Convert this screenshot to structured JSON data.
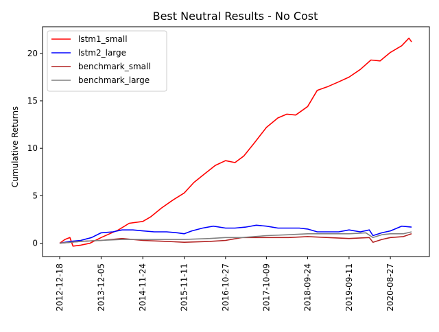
{
  "chart_data": {
    "type": "line",
    "title": "Best Neutral Results - No Cost",
    "xlabel": "",
    "ylabel": "Cumulative Returns",
    "x_ticks": [
      "2012-12-18",
      "2013-12-05",
      "2014-11-24",
      "2015-11-11",
      "2016-10-27",
      "2017-10-09",
      "2018-09-24",
      "2019-09-11",
      "2020-08-27"
    ],
    "x_range": [
      "2012-12-18",
      "2021-02-23"
    ],
    "y_ticks": [
      0,
      5,
      10,
      15,
      20
    ],
    "ylim": [
      -1.4,
      22.8
    ],
    "grid": false,
    "legend_position": "upper-left",
    "series": [
      {
        "name": "lstm1_small",
        "color": "#ff0000",
        "points": [
          [
            "2012-12-18",
            0.0
          ],
          [
            "2013-01-31",
            0.4
          ],
          [
            "2013-03-15",
            0.6
          ],
          [
            "2013-04-10",
            -0.3
          ],
          [
            "2013-06-15",
            -0.2
          ],
          [
            "2013-09-01",
            0.0
          ],
          [
            "2013-12-05",
            0.6
          ],
          [
            "2014-02-15",
            1.0
          ],
          [
            "2014-05-01",
            1.4
          ],
          [
            "2014-08-01",
            2.1
          ],
          [
            "2014-11-24",
            2.3
          ],
          [
            "2015-02-01",
            2.8
          ],
          [
            "2015-05-01",
            3.7
          ],
          [
            "2015-08-01",
            4.5
          ],
          [
            "2015-11-11",
            5.3
          ],
          [
            "2016-02-01",
            6.4
          ],
          [
            "2016-05-01",
            7.3
          ],
          [
            "2016-08-01",
            8.2
          ],
          [
            "2016-10-27",
            8.7
          ],
          [
            "2017-01-15",
            8.5
          ],
          [
            "2017-04-01",
            9.2
          ],
          [
            "2017-07-01",
            10.6
          ],
          [
            "2017-10-09",
            12.2
          ],
          [
            "2018-01-15",
            13.2
          ],
          [
            "2018-04-01",
            13.6
          ],
          [
            "2018-06-15",
            13.5
          ],
          [
            "2018-09-24",
            14.4
          ],
          [
            "2018-12-15",
            16.1
          ],
          [
            "2019-03-15",
            16.5
          ],
          [
            "2019-06-15",
            17.0
          ],
          [
            "2019-09-11",
            17.5
          ],
          [
            "2019-12-15",
            18.3
          ],
          [
            "2020-03-15",
            19.3
          ],
          [
            "2020-06-01",
            19.2
          ],
          [
            "2020-08-27",
            20.1
          ],
          [
            "2020-12-01",
            20.8
          ],
          [
            "2021-02-01",
            21.6
          ],
          [
            "2021-02-23",
            21.2
          ]
        ]
      },
      {
        "name": "lstm2_large",
        "color": "#0000ff",
        "points": [
          [
            "2012-12-18",
            0.0
          ],
          [
            "2013-03-15",
            0.2
          ],
          [
            "2013-06-15",
            0.3
          ],
          [
            "2013-09-15",
            0.6
          ],
          [
            "2013-12-05",
            1.1
          ],
          [
            "2014-03-15",
            1.2
          ],
          [
            "2014-06-01",
            1.4
          ],
          [
            "2014-09-01",
            1.4
          ],
          [
            "2014-11-24",
            1.3
          ],
          [
            "2015-03-01",
            1.2
          ],
          [
            "2015-06-15",
            1.2
          ],
          [
            "2015-09-15",
            1.1
          ],
          [
            "2015-11-11",
            1.0
          ],
          [
            "2016-01-15",
            1.3
          ],
          [
            "2016-04-15",
            1.6
          ],
          [
            "2016-07-15",
            1.8
          ],
          [
            "2016-10-27",
            1.6
          ],
          [
            "2017-01-15",
            1.6
          ],
          [
            "2017-04-15",
            1.7
          ],
          [
            "2017-07-15",
            1.9
          ],
          [
            "2017-10-09",
            1.8
          ],
          [
            "2018-01-15",
            1.6
          ],
          [
            "2018-04-15",
            1.6
          ],
          [
            "2018-07-15",
            1.6
          ],
          [
            "2018-09-24",
            1.5
          ],
          [
            "2018-12-15",
            1.2
          ],
          [
            "2019-03-15",
            1.2
          ],
          [
            "2019-06-15",
            1.2
          ],
          [
            "2019-09-11",
            1.4
          ],
          [
            "2019-12-15",
            1.2
          ],
          [
            "2020-03-01",
            1.4
          ],
          [
            "2020-04-01",
            0.8
          ],
          [
            "2020-06-15",
            1.1
          ],
          [
            "2020-08-27",
            1.3
          ],
          [
            "2020-12-01",
            1.8
          ],
          [
            "2021-02-23",
            1.7
          ]
        ]
      },
      {
        "name": "benchmark_small",
        "color": "#b22222",
        "points": [
          [
            "2012-12-18",
            0.0
          ],
          [
            "2013-06-15",
            0.2
          ],
          [
            "2013-12-05",
            0.3
          ],
          [
            "2014-06-01",
            0.5
          ],
          [
            "2014-11-24",
            0.3
          ],
          [
            "2015-06-15",
            0.2
          ],
          [
            "2015-11-11",
            0.1
          ],
          [
            "2016-06-15",
            0.2
          ],
          [
            "2016-10-27",
            0.3
          ],
          [
            "2017-03-15",
            0.6
          ],
          [
            "2017-10-09",
            0.6
          ],
          [
            "2018-04-15",
            0.6
          ],
          [
            "2018-09-24",
            0.7
          ],
          [
            "2019-03-15",
            0.6
          ],
          [
            "2019-09-11",
            0.5
          ],
          [
            "2020-03-01",
            0.6
          ],
          [
            "2020-04-01",
            0.1
          ],
          [
            "2020-06-15",
            0.4
          ],
          [
            "2020-08-27",
            0.6
          ],
          [
            "2020-12-15",
            0.7
          ],
          [
            "2021-02-23",
            1.0
          ]
        ]
      },
      {
        "name": "benchmark_large",
        "color": "#808080",
        "points": [
          [
            "2012-12-18",
            0.0
          ],
          [
            "2013-06-15",
            0.2
          ],
          [
            "2013-12-05",
            0.3
          ],
          [
            "2014-06-01",
            0.4
          ],
          [
            "2014-11-24",
            0.4
          ],
          [
            "2015-06-15",
            0.4
          ],
          [
            "2015-11-11",
            0.4
          ],
          [
            "2016-06-15",
            0.5
          ],
          [
            "2016-10-27",
            0.6
          ],
          [
            "2017-03-15",
            0.6
          ],
          [
            "2017-10-09",
            0.8
          ],
          [
            "2018-04-15",
            0.9
          ],
          [
            "2018-09-24",
            1.0
          ],
          [
            "2019-03-15",
            1.0
          ],
          [
            "2019-09-11",
            1.0
          ],
          [
            "2020-02-01",
            1.1
          ],
          [
            "2020-04-01",
            0.6
          ],
          [
            "2020-06-15",
            0.9
          ],
          [
            "2020-08-27",
            1.0
          ],
          [
            "2020-12-15",
            1.0
          ],
          [
            "2021-02-23",
            1.2
          ]
        ]
      }
    ]
  }
}
